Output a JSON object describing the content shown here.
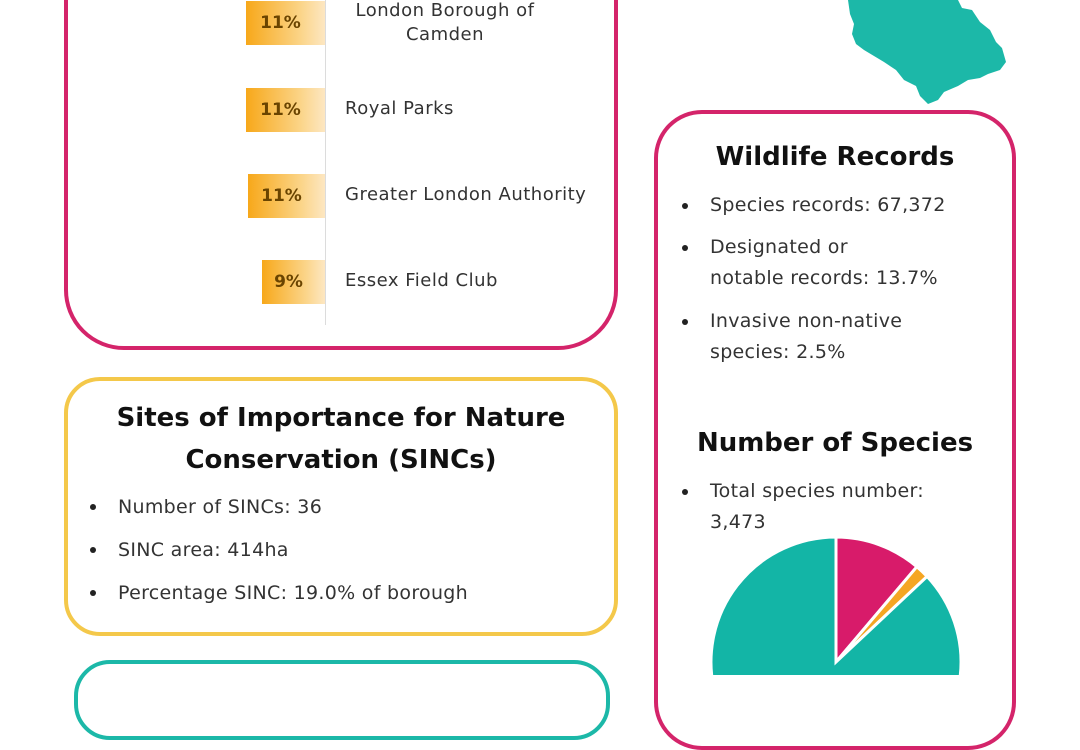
{
  "colors": {
    "magenta": "#d4246a",
    "yellow": "#f4c84a",
    "teal": "#1cb8a8",
    "orange": "#f7a81a"
  },
  "landowners": [
    {
      "percent_label": "11%",
      "value": 11,
      "name_line1": "London Borough of",
      "name_line2": "Camden"
    },
    {
      "percent_label": "11%",
      "value": 11,
      "name_line1": "Royal Parks",
      "name_line2": ""
    },
    {
      "percent_label": "11%",
      "value": 11,
      "name_line1": "Greater London Authority",
      "name_line2": ""
    },
    {
      "percent_label": "9%",
      "value": 9,
      "name_line1": "Essex Field Club",
      "name_line2": ""
    }
  ],
  "sincs": {
    "title_line1": "Sites of Importance for Nature",
    "title_line2": "Conservation (SINCs)",
    "facts": [
      "Number of SINCs: 36",
      "SINC area: 414ha",
      "Percentage SINC: 19.0% of borough"
    ]
  },
  "wildlife": {
    "title": "Wildlife Records",
    "fact1": "Species records: 67,372",
    "fact2_line1": "Designated or",
    "fact2_line2": "notable records: 13.7%",
    "fact3_line1": "Invasive non-native",
    "fact3_line2": "species: 2.5%"
  },
  "species": {
    "title": "Number of Species",
    "fact_line1": "Total species number:",
    "fact_line2": "3,473"
  },
  "chart_data": {
    "type": "pie",
    "slices": [
      {
        "value": 11.2,
        "color": "#d81b6a"
      },
      {
        "value": 1.8,
        "color": "#f5a623"
      },
      {
        "value": 87.0,
        "color": "#13b5a6"
      }
    ]
  }
}
